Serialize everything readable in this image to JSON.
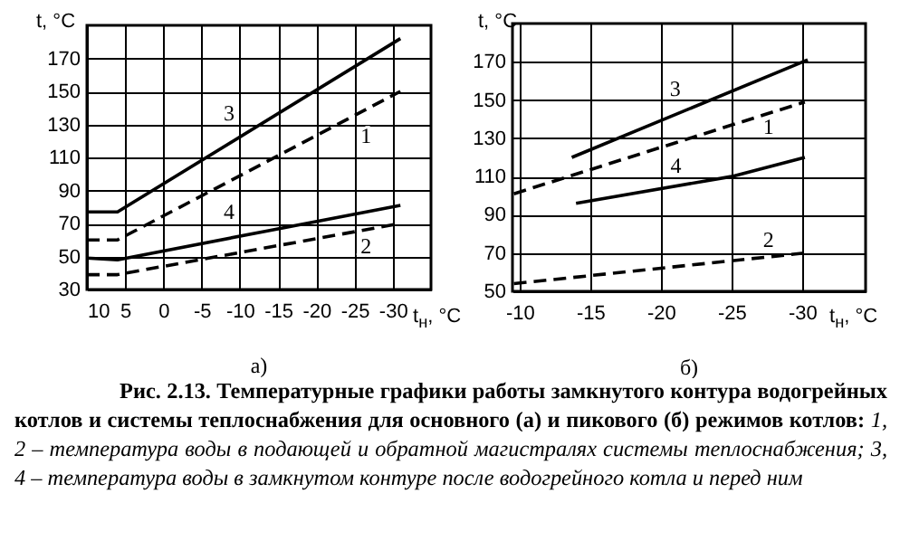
{
  "chart_data": [
    {
      "type": "line",
      "title": "а)",
      "xlabel": "t$_{н}$, °C",
      "ylabel": "t, °C",
      "xlim": [
        10,
        -35
      ],
      "xticks": [
        10,
        5,
        0,
        -5,
        -10,
        -15,
        -20,
        -25,
        -30
      ],
      "ylim": [
        30,
        190
      ],
      "yticks": [
        30,
        50,
        70,
        90,
        110,
        130,
        150,
        170
      ],
      "grid": true,
      "series": [
        {
          "name": "3",
          "color": "#000000",
          "line_style": "solid",
          "x": [
            10,
            6,
            -31
          ],
          "values": [
            77,
            77,
            182
          ]
        },
        {
          "name": "1",
          "color": "#000000",
          "line_style": "dashed",
          "x": [
            10,
            6,
            -31
          ],
          "values": [
            60,
            60,
            150
          ]
        },
        {
          "name": "4",
          "color": "#000000",
          "line_style": "solid",
          "x": [
            10,
            6,
            -31
          ],
          "values": [
            49,
            48,
            81
          ]
        },
        {
          "name": "2",
          "color": "#000000",
          "line_style": "dashed",
          "x": [
            10,
            6,
            -31
          ],
          "values": [
            39,
            39,
            70
          ]
        }
      ],
      "annotations": [
        "Рис. 2.13. Температурные графики работы замкнутого контура водогрейных котлов и системы теплоснабжения для основного (а) и пикового (б) режимов котлов:",
        "1, 2 – температура воды в подающей и обратной магистралях системы теплоснабжения; 3, 4 – температура воды в замкнутом контуре после водогрейного котла и перед ним"
      ]
    },
    {
      "type": "line",
      "title": "б)",
      "xlabel": "t$_{н}$, °C",
      "ylabel": "t, °C",
      "xlim": [
        -9.5,
        -34.5
      ],
      "xticks": [
        -10,
        -15,
        -20,
        -25,
        -30
      ],
      "ylim": [
        50,
        190
      ],
      "yticks": [
        50,
        70,
        90,
        110,
        130,
        150,
        170
      ],
      "grid": true,
      "series": [
        {
          "name": "3",
          "color": "#000000",
          "line_style": "solid",
          "x": [
            -13.7,
            -30.4
          ],
          "values": [
            120,
            171
          ]
        },
        {
          "name": "1",
          "color": "#000000",
          "line_style": "dashed",
          "x": [
            -9.6,
            -30.2
          ],
          "values": [
            101,
            149
          ]
        },
        {
          "name": "4",
          "color": "#000000",
          "line_style": "solid",
          "x": [
            -14,
            -25,
            -30.2
          ],
          "values": [
            96,
            110,
            120
          ]
        },
        {
          "name": "2",
          "color": "#000000",
          "line_style": "dashed",
          "x": [
            -9.6,
            -30.2
          ],
          "values": [
            54,
            70
          ]
        }
      ]
    }
  ]
}
